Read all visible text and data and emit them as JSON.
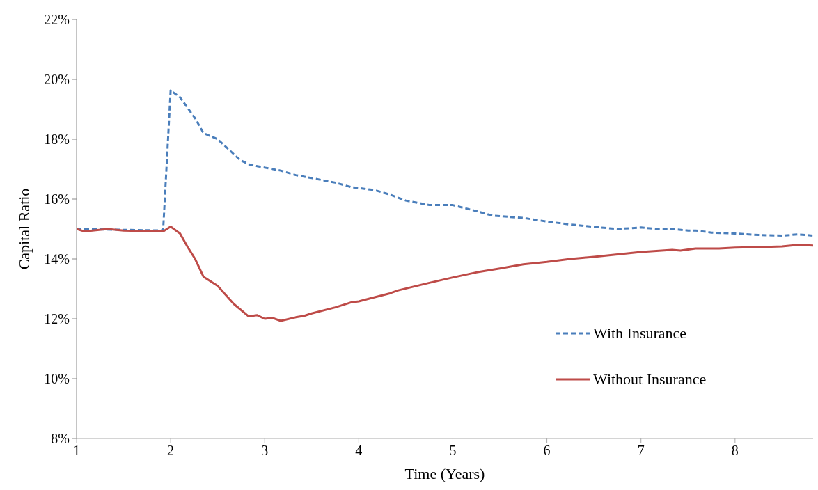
{
  "chart_data": {
    "type": "line",
    "xlabel": "Time (Years)",
    "ylabel": "Capital Ratio",
    "xlim": [
      1,
      8.83
    ],
    "xticks": [
      1,
      2,
      3,
      4,
      5,
      6,
      7,
      8
    ],
    "ylim": [
      8,
      22
    ],
    "yticks": [
      {
        "value": 8,
        "label": "8%"
      },
      {
        "value": 10,
        "label": "10%"
      },
      {
        "value": 12,
        "label": "12%"
      },
      {
        "value": 14,
        "label": "14%"
      },
      {
        "value": 16,
        "label": "16%"
      },
      {
        "value": 18,
        "label": "18%"
      },
      {
        "value": 20,
        "label": "20%"
      },
      {
        "value": 22,
        "label": "22%"
      }
    ],
    "grid": false,
    "legend": "right",
    "marker": "none",
    "series": [
      {
        "name": "With Insurance",
        "color": "#4a7ebb",
        "line_style": "dashed",
        "x": [
          1,
          1.92,
          2,
          2.1,
          2.26,
          2.35,
          2.5,
          2.74,
          2.84,
          2.92,
          3,
          3.17,
          3.33,
          3.5,
          3.75,
          3.92,
          4.17,
          4.33,
          4.5,
          4.75,
          5,
          5.25,
          5.42,
          5.75,
          6,
          6.25,
          6.5,
          6.75,
          7,
          7.17,
          7.33,
          7.5,
          7.58,
          7.75,
          8,
          8.25,
          8.5,
          8.67,
          8.83
        ],
        "values": [
          15.0,
          14.95,
          19.63,
          19.4,
          18.7,
          18.2,
          18.0,
          17.3,
          17.15,
          17.1,
          17.05,
          16.95,
          16.8,
          16.7,
          16.55,
          16.4,
          16.3,
          16.15,
          15.95,
          15.8,
          15.8,
          15.6,
          15.45,
          15.37,
          15.25,
          15.15,
          15.07,
          15.0,
          15.05,
          15.0,
          15.0,
          14.95,
          14.95,
          14.88,
          14.85,
          14.8,
          14.78,
          14.82,
          14.78
        ]
      },
      {
        "name": "Without Insurance",
        "color": "#be4b48",
        "line_style": "solid",
        "x": [
          1,
          1.08,
          1.33,
          1.5,
          1.92,
          2,
          2.1,
          2.18,
          2.26,
          2.35,
          2.5,
          2.67,
          2.83,
          2.92,
          3,
          3.08,
          3.17,
          3.33,
          3.42,
          3.5,
          3.75,
          3.92,
          4,
          4.17,
          4.33,
          4.42,
          4.75,
          5,
          5.25,
          5.5,
          5.75,
          6,
          6.25,
          6.5,
          6.75,
          7,
          7.33,
          7.42,
          7.58,
          7.83,
          8,
          8.33,
          8.5,
          8.67,
          8.83
        ],
        "values": [
          15.0,
          14.92,
          15.0,
          14.95,
          14.92,
          15.08,
          14.85,
          14.4,
          14.0,
          13.4,
          13.1,
          12.5,
          12.08,
          12.12,
          12.0,
          12.03,
          11.93,
          12.05,
          12.1,
          12.18,
          12.38,
          12.55,
          12.58,
          12.72,
          12.85,
          12.95,
          13.2,
          13.38,
          13.55,
          13.68,
          13.82,
          13.9,
          14.0,
          14.07,
          14.15,
          14.23,
          14.3,
          14.28,
          14.35,
          14.35,
          14.38,
          14.4,
          14.42,
          14.47,
          14.45
        ]
      }
    ]
  }
}
